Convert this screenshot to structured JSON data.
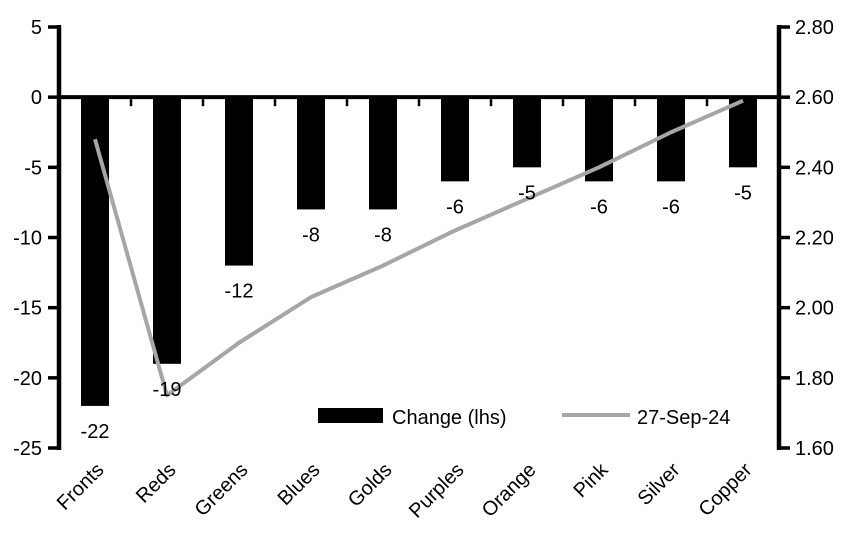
{
  "chart_data": {
    "type": "bar-line-combo",
    "title": "",
    "background": "#ffffff",
    "grid": false,
    "categories": [
      "Fronts",
      "Reds",
      "Greens",
      "Blues",
      "Golds",
      "Purples",
      "Orange",
      "Pink",
      "Silver",
      "Copper"
    ],
    "series": [
      {
        "name": "Change (lhs)",
        "type": "bar",
        "axis": "left",
        "color": "#000000",
        "values": [
          -22,
          -19,
          -12,
          -8,
          -8,
          -6,
          -5,
          -6,
          -6,
          -5
        ],
        "data_labels": [
          -22,
          -19,
          -12,
          -8,
          -8,
          -6,
          -5,
          -6,
          -6,
          -5
        ]
      },
      {
        "name": "27-Sep-24",
        "type": "line",
        "axis": "right",
        "color": "#a6a6a6",
        "values": [
          2.48,
          1.75,
          1.9,
          2.03,
          2.12,
          2.22,
          2.31,
          2.4,
          2.5,
          2.59
        ]
      }
    ],
    "left_axis": {
      "min": -25,
      "max": 5,
      "tick_labels": [
        "5",
        "0",
        "-5",
        "-10",
        "-15",
        "-20",
        "-25"
      ],
      "tick_values": [
        5,
        0,
        -5,
        -10,
        -15,
        -20,
        -25
      ]
    },
    "right_axis": {
      "min": 1.6,
      "max": 2.8,
      "tick_labels": [
        "2.80",
        "2.60",
        "2.40",
        "2.20",
        "2.00",
        "1.80",
        "1.60"
      ],
      "tick_values": [
        2.8,
        2.6,
        2.4,
        2.2,
        2.0,
        1.8,
        1.6
      ]
    },
    "legend": {
      "position": "bottom-inside",
      "entries": [
        {
          "label": "Change (lhs)",
          "swatch": "bar",
          "color": "#000000"
        },
        {
          "label": "27-Sep-24",
          "swatch": "line",
          "color": "#a6a6a6"
        }
      ]
    },
    "axis_color": "#000000",
    "text_color": "#000000"
  }
}
